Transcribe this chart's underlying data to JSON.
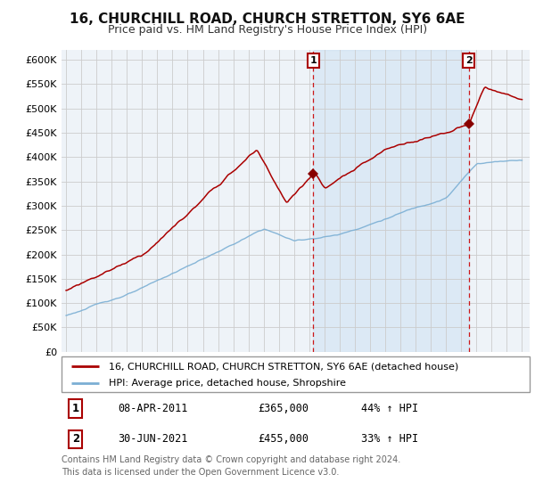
{
  "title": "16, CHURCHILL ROAD, CHURCH STRETTON, SY6 6AE",
  "subtitle": "Price paid vs. HM Land Registry's House Price Index (HPI)",
  "ylim": [
    0,
    620000
  ],
  "xlim": [
    1994.7,
    2025.5
  ],
  "transaction1": {
    "date": "08-APR-2011",
    "price": 365000,
    "pct": "44% ↑ HPI",
    "label": "1",
    "year": 2011.27
  },
  "transaction2": {
    "date": "30-JUN-2021",
    "price": 455000,
    "pct": "33% ↑ HPI",
    "label": "2",
    "year": 2021.5
  },
  "legend_line1": "16, CHURCHILL ROAD, CHURCH STRETTON, SY6 6AE (detached house)",
  "legend_line2": "HPI: Average price, detached house, Shropshire",
  "footnote": "Contains HM Land Registry data © Crown copyright and database right 2024.\nThis data is licensed under the Open Government Licence v3.0.",
  "red_color": "#aa0000",
  "blue_color": "#7bafd4",
  "blue_fill": "#ddeeff",
  "dashed_color": "#cc0000",
  "bg_plot": "#eef3f8",
  "bg_outer": "#ffffff",
  "grid_color": "#cccccc"
}
